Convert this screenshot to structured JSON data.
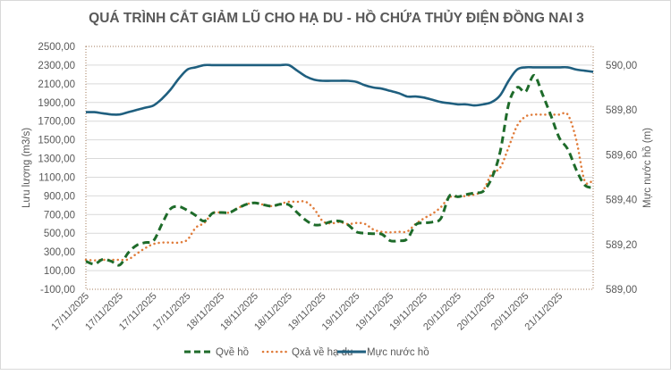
{
  "chart_data": {
    "type": "line",
    "title": "QUÁ TRÌNH CẮT GIẢM LŨ CHO HẠ DU - HỒ CHỨA THỦY ĐIỆN ĐỒNG NAI 3",
    "ylabel": "Lưu lượng (m3/s)",
    "y2label": "Mực nước hồ (m)",
    "xlabel": "",
    "ylim": [
      -100,
      2500
    ],
    "y_ticks": [
      "-100,00",
      "100,00",
      "300,00",
      "500,00",
      "700,00",
      "900,00",
      "1100,00",
      "1300,00",
      "1500,00",
      "1700,00",
      "1900,00",
      "2100,00",
      "2300,00",
      "2500,00"
    ],
    "y2lim": [
      589.0,
      590.0833
    ],
    "y2_ticks": [
      "589,00",
      "589,20",
      "589,40",
      "589,60",
      "589,80",
      "590,00"
    ],
    "x_tick_labels": [
      "17/11/2025",
      "17/11/2025",
      "17/11/2025",
      "17/11/2025",
      "18/11/2025",
      "18/11/2025",
      "18/11/2025",
      "19/11/2025",
      "19/11/2025",
      "19/11/2025",
      "19/11/2025",
      "20/11/2025",
      "20/11/2025",
      "20/11/2025",
      "21/11/2025"
    ],
    "grid": true,
    "legend": "bottom",
    "series": [
      {
        "name": "Qvề hồ",
        "axis": "left",
        "style": "dashed",
        "color": "#1e6b2a",
        "values": [
          199,
          170,
          220,
          200,
          160,
          290,
          370,
          400,
          420,
          600,
          760,
          785,
          745,
          690,
          630,
          715,
          722,
          722,
          770,
          810,
          825,
          805,
          790,
          810,
          805,
          720,
          640,
          590,
          595,
          625,
          630,
          590,
          515,
          500,
          495,
          490,
          420,
          420,
          438,
          590,
          610,
          620,
          660,
          900,
          890,
          915,
          932,
          950,
          1090,
          1370,
          1880,
          2060,
          2015,
          2190,
          1990,
          1760,
          1520,
          1400,
          1180,
          1016,
          987
        ]
      },
      {
        "name": "Qxả về hạ du",
        "axis": "left",
        "style": "dotted",
        "color": "#e07b39",
        "values": [
          215,
          210,
          215,
          215,
          215,
          220,
          280,
          340,
          385,
          400,
          400,
          400,
          430,
          560,
          610,
          715,
          722,
          722,
          770,
          810,
          825,
          805,
          790,
          815,
          837,
          837,
          837,
          760,
          630,
          605,
          620,
          598,
          610,
          600,
          540,
          515,
          510,
          515,
          518,
          600,
          660,
          710,
          780,
          885,
          890,
          900,
          916,
          960,
          1140,
          1200,
          1420,
          1650,
          1750,
          1770,
          1770,
          1770,
          1770,
          1770,
          1500,
          1060,
          1069
        ]
      },
      {
        "name": "Mực nước hồ",
        "axis": "right",
        "style": "solid",
        "color": "#1f5f7f",
        "values": [
          589.79,
          589.79,
          589.785,
          589.78,
          589.78,
          589.79,
          589.8,
          589.81,
          589.82,
          589.85,
          589.89,
          589.94,
          589.98,
          589.99,
          590.0,
          590.0,
          590.0,
          590.0,
          590.0,
          590.0,
          590.0,
          590.0,
          590.0,
          590.0,
          590.0,
          589.975,
          589.95,
          589.935,
          589.93,
          589.93,
          589.93,
          589.93,
          589.925,
          589.91,
          589.9,
          589.895,
          589.885,
          589.875,
          589.86,
          589.86,
          589.855,
          589.845,
          589.835,
          589.83,
          589.825,
          589.825,
          589.82,
          589.825,
          589.835,
          589.865,
          589.93,
          589.98,
          589.99,
          589.99,
          589.99,
          589.99,
          589.99,
          589.99,
          589.98,
          589.975,
          589.97
        ]
      }
    ]
  }
}
